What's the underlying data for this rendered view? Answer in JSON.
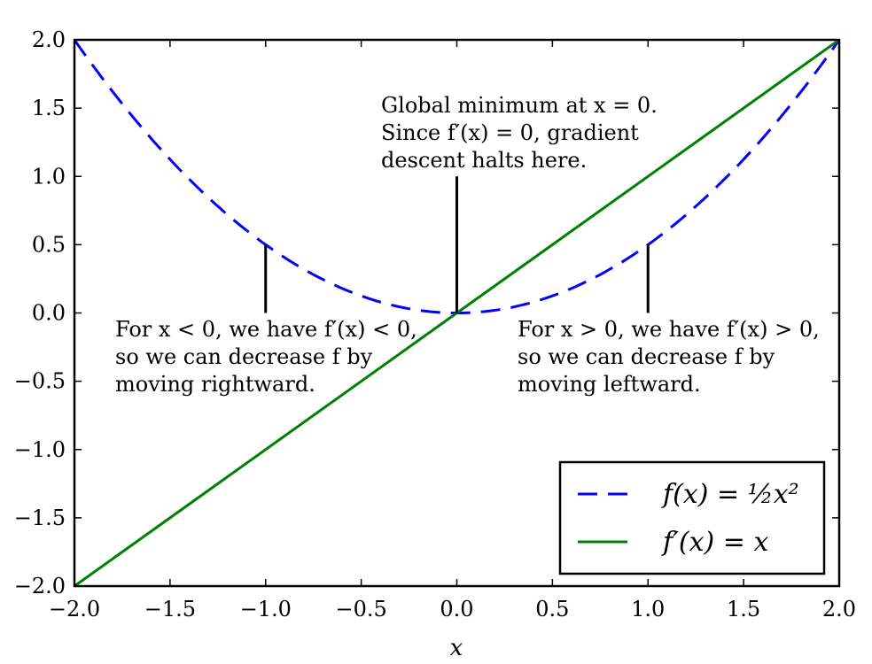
{
  "chart_data": {
    "type": "line",
    "title": "",
    "xlabel": "x",
    "ylabel": "",
    "xlim": [
      -2.0,
      2.0
    ],
    "ylim": [
      -2.0,
      2.0
    ],
    "grid": false,
    "legend_placement": "lower-right",
    "x_ticks": [
      -2.0,
      -1.5,
      -1.0,
      -0.5,
      0.0,
      0.5,
      1.0,
      1.5,
      2.0
    ],
    "y_ticks": [
      -2.0,
      -1.5,
      -1.0,
      -0.5,
      0.0,
      0.5,
      1.0,
      1.5,
      2.0
    ],
    "x_tick_labels": [
      "−2.0",
      "−1.5",
      "−1.0",
      "−0.5",
      "0.0",
      "0.5",
      "1.0",
      "1.5",
      "2.0"
    ],
    "y_tick_labels": [
      "−2.0",
      "−1.5",
      "−1.0",
      "−0.5",
      "0.0",
      "0.5",
      "1.0",
      "1.5",
      "2.0"
    ],
    "series": [
      {
        "name": "f(x) = ½x²",
        "color": "#0000ff",
        "style": "dashed",
        "x": [
          -2.0,
          -1.75,
          -1.5,
          -1.25,
          -1.0,
          -0.75,
          -0.5,
          -0.25,
          0.0,
          0.25,
          0.5,
          0.75,
          1.0,
          1.25,
          1.5,
          1.75,
          2.0
        ],
        "y": [
          2.0,
          1.53,
          1.125,
          0.78,
          0.5,
          0.28,
          0.125,
          0.03,
          0.0,
          0.03,
          0.125,
          0.28,
          0.5,
          0.78,
          1.125,
          1.53,
          2.0
        ]
      },
      {
        "name": "f′(x) = x",
        "color": "#008000",
        "style": "solid",
        "x": [
          -2.0,
          2.0
        ],
        "y": [
          -2.0,
          2.0
        ]
      }
    ],
    "annotations": [
      {
        "lines": [
          "Global minimum at x = 0.",
          "Since f′(x) = 0, gradient",
          "descent halts here."
        ],
        "arrow_from": [
          0.0,
          1.0
        ],
        "arrow_to": [
          0.0,
          0.0
        ]
      },
      {
        "lines": [
          "For x < 0, we have f′(x) < 0,",
          "so we can decrease f by",
          "moving rightward."
        ],
        "arrow_from": [
          -1.0,
          0.0
        ],
        "arrow_to": [
          -1.0,
          0.5
        ]
      },
      {
        "lines": [
          "For x > 0, we have f′(x) > 0,",
          "so we can decrease f by",
          "moving leftward."
        ],
        "arrow_from": [
          1.0,
          0.0
        ],
        "arrow_to": [
          1.0,
          0.5
        ]
      }
    ]
  }
}
